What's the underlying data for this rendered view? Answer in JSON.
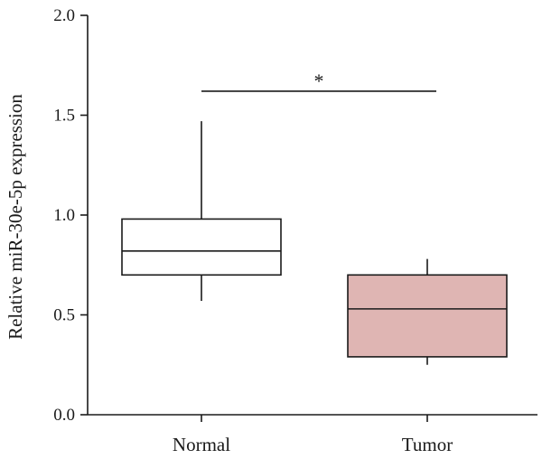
{
  "chart_data": {
    "type": "box",
    "categories": [
      "Normal",
      "Tumor"
    ],
    "series": [
      {
        "boxes": [
          {
            "category": "Normal",
            "min": 0.57,
            "q1": 0.7,
            "median": 0.82,
            "q3": 0.98,
            "max": 1.47,
            "fill": "#ffffff"
          },
          {
            "category": "Tumor",
            "min": 0.25,
            "q1": 0.29,
            "median": 0.53,
            "q3": 0.7,
            "max": 0.78,
            "fill": "#dfb5b3"
          }
        ]
      }
    ],
    "ylabel": "Relative miR-30e-5p expression",
    "xlabel": "",
    "title": "",
    "ylim": [
      0,
      2.0
    ],
    "yticks": [
      "0.0",
      "0.5",
      "1.0",
      "1.5",
      "2.0"
    ],
    "grid": false,
    "significance": {
      "between": [
        "Normal",
        "Tumor"
      ],
      "label": "*",
      "y": 1.62
    }
  },
  "colors": {
    "axis": "#1a1a1a",
    "tumor_fill": "#dfb5b3",
    "normal_fill": "#ffffff"
  }
}
